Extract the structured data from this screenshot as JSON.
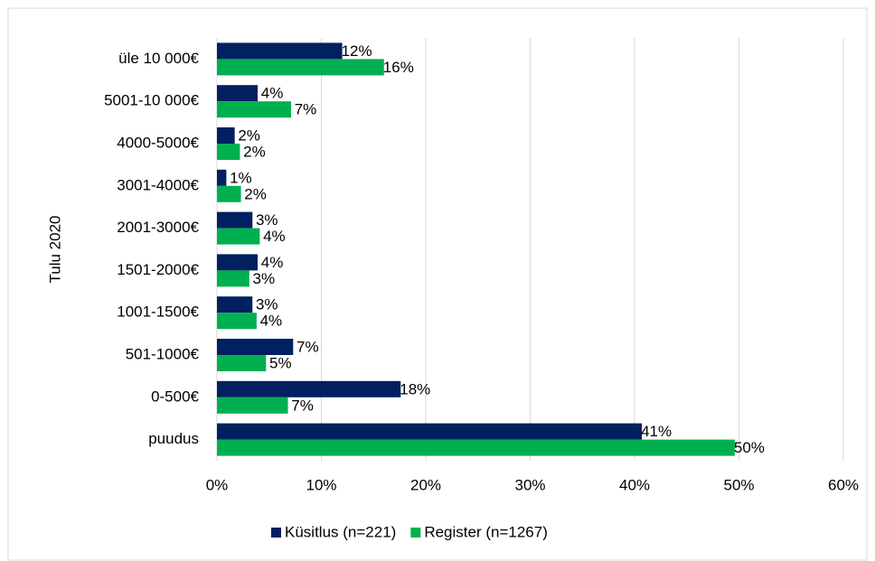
{
  "chart_data": {
    "type": "bar",
    "orientation": "horizontal",
    "y_axis_label": "Tulu 2020",
    "categories": [
      "üle 10 000€",
      "5001-10 000€",
      "4000-5000€",
      "3001-4000€",
      "2001-3000€",
      "1501-2000€",
      "1001-1500€",
      "501-1000€",
      "0-500€",
      "puudus"
    ],
    "series": [
      {
        "name": "Küsitlus (n=221)",
        "color": "#002060",
        "values": [
          12,
          3.9,
          1.7,
          0.9,
          3.4,
          3.9,
          3.4,
          7.3,
          17.6,
          40.7
        ],
        "value_labels": [
          "12%",
          "4%",
          "2%",
          "1%",
          "3%",
          "4%",
          "3%",
          "7%",
          "18%",
          "41%"
        ]
      },
      {
        "name": "Register (n=1267)",
        "color": "#00b050",
        "values": [
          16,
          7.1,
          2.2,
          2.3,
          4.1,
          3.1,
          3.8,
          4.7,
          6.8,
          49.6
        ],
        "value_labels": [
          "16%",
          "7%",
          "2%",
          "2%",
          "4%",
          "3%",
          "4%",
          "5%",
          "7%",
          "50%"
        ]
      }
    ],
    "xlim": [
      0,
      60
    ],
    "xticks": [
      {
        "value": 0,
        "label": "0%"
      },
      {
        "value": 10,
        "label": "10%"
      },
      {
        "value": 20,
        "label": "20%"
      },
      {
        "value": 30,
        "label": "30%"
      },
      {
        "value": 40,
        "label": "40%"
      },
      {
        "value": 50,
        "label": "50%"
      },
      {
        "value": 60,
        "label": "60%"
      }
    ],
    "grid": true,
    "legend": "bottom"
  }
}
